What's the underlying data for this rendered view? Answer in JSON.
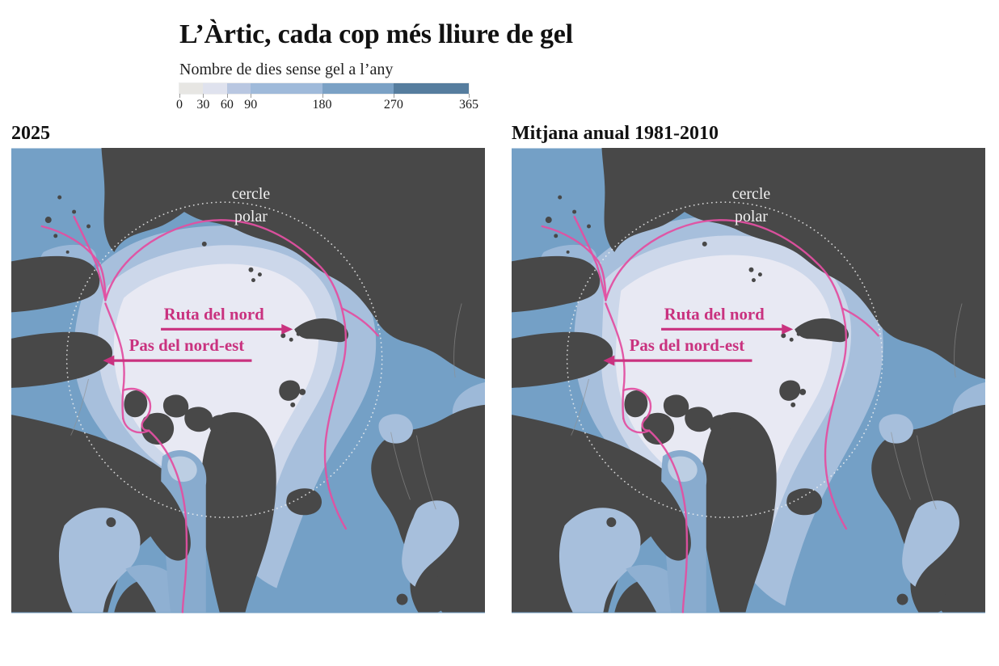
{
  "title": "L’Àrtic, cada cop més lliure de gel",
  "legend": {
    "label": "Nombre de dies sense gel a l’any",
    "min": 0,
    "max": 365,
    "ticks": [
      0,
      30,
      60,
      90,
      180,
      270,
      365
    ],
    "segments": [
      {
        "from": 0,
        "to": 30,
        "color": "#e7e6e3"
      },
      {
        "from": 30,
        "to": 60,
        "color": "#dfe2ee"
      },
      {
        "from": 60,
        "to": 90,
        "color": "#b9c7e1"
      },
      {
        "from": 90,
        "to": 180,
        "color": "#9fbada"
      },
      {
        "from": 180,
        "to": 270,
        "color": "#7ba1c5"
      },
      {
        "from": 270,
        "to": 365,
        "color": "#567d9e"
      }
    ]
  },
  "maps": [
    {
      "title": "2025",
      "variant": "current"
    },
    {
      "title": "Mitjana anual 1981-2010",
      "variant": "baseline"
    }
  ],
  "map_labels": {
    "polar_line1": "cercle",
    "polar_line2": "polar",
    "route_north": "Ruta del nord",
    "passage_northeast": "Pas del nord-est"
  },
  "colors": {
    "land": "#484848",
    "ocean": "#74a0c6",
    "ice_core": "#e8e9f3",
    "ice_ring": "#ccd7ea",
    "ice_outer": "#a7bfdc",
    "bay_light": "#a7bfdc",
    "bay_mid": "#8fb0d2",
    "baffin_bay": "#88abce",
    "border_line": "#8f8f8f",
    "route_pink": "#e150a1",
    "label_pink": "#c9327f",
    "polar_circle": "#f3f3f3"
  }
}
